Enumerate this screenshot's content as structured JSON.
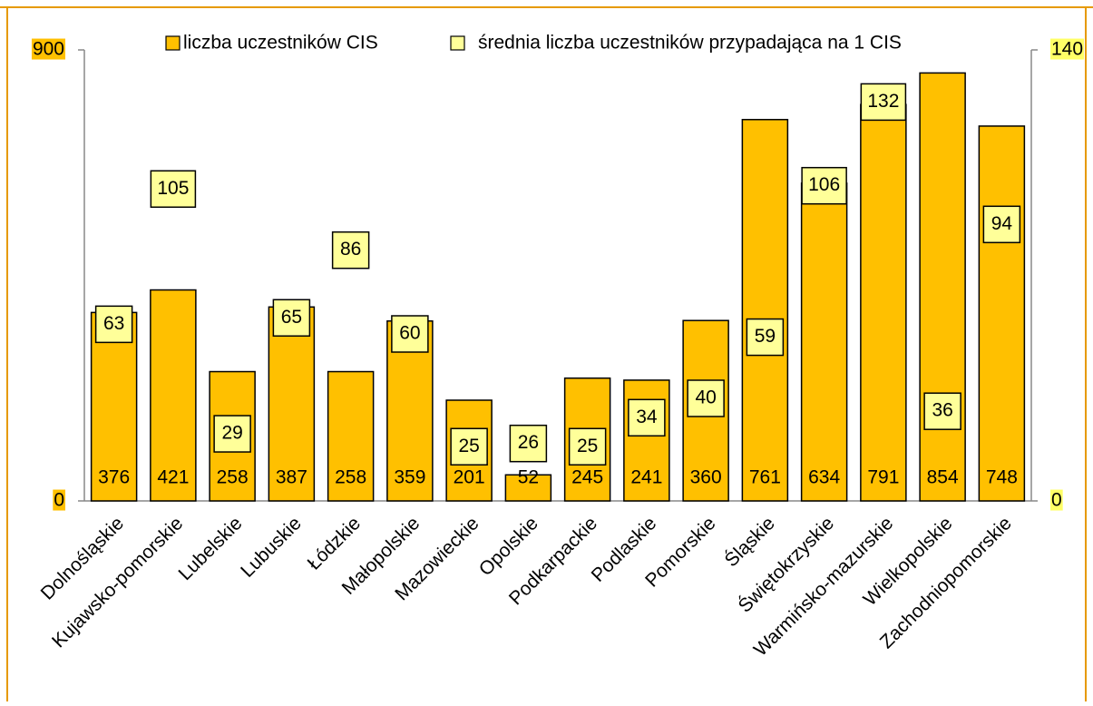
{
  "chart_data": {
    "type": "bar",
    "categories": [
      "Dolnośląskie",
      "Kujawsko-pomorskie",
      "Lubelskie",
      "Lubuskie",
      "Łódzkie",
      "Małopolskie",
      "Mazowieckie",
      "Opolskie",
      "Podkarpackie",
      "Podlaskie",
      "Pomorskie",
      "Śląskie",
      "Świętokrzyskie",
      "Warmińsko-mazurskie",
      "Wielkopolskie",
      "Zachodniopomorskie"
    ],
    "series": [
      {
        "name": "liczba uczestników CIS",
        "color": "#FFC000",
        "values": [
          376,
          421,
          258,
          387,
          258,
          359,
          201,
          52,
          245,
          241,
          360,
          761,
          634,
          791,
          854,
          748
        ]
      },
      {
        "name": "średnia liczba uczestników przypadająca na 1 CIS",
        "color": "#FFFF99",
        "axis": "y2",
        "values": [
          63,
          105,
          29,
          65,
          86,
          60,
          25,
          26,
          25,
          34,
          40,
          59,
          106,
          132,
          36,
          94
        ]
      }
    ],
    "ylim": [
      0,
      900
    ],
    "yticks": [
      0,
      900
    ],
    "y2lim": [
      0,
      140
    ],
    "y2ticks": [
      0,
      140
    ],
    "legend": "top"
  }
}
